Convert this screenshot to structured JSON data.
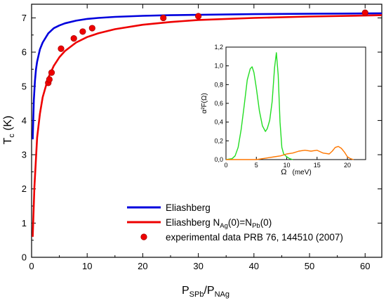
{
  "chart_data": {
    "type": "line",
    "title": "",
    "xlabel": {
      "main": "P",
      "sub1": "SPb",
      "sep": "/P",
      "sub2": "NAg"
    },
    "ylabel": {
      "main": "T",
      "sub": "c",
      "unit": " (K)"
    },
    "xlim": [
      0,
      63
    ],
    "ylim": [
      0,
      7.4
    ],
    "xticks": [
      "0",
      "10",
      "20",
      "30",
      "40",
      "50",
      "60"
    ],
    "yticks": [
      "0",
      "1",
      "2",
      "3",
      "4",
      "5",
      "6",
      "7"
    ],
    "grid": false,
    "legend_position": "bottom-right",
    "series": [
      {
        "name": "Eliashberg",
        "color": "#0000dd",
        "kind": "line",
        "x": [
          0.2,
          0.4,
          0.6,
          0.8,
          1.0,
          1.5,
          2.0,
          3.0,
          4.0,
          5.0,
          6.0,
          8.0,
          10.0,
          12.0,
          15.0,
          20.0,
          25.0,
          30.0,
          40.0,
          50.0,
          60.0,
          63.0
        ],
        "y": [
          3.45,
          4.6,
          5.16,
          5.5,
          5.72,
          6.08,
          6.28,
          6.55,
          6.7,
          6.78,
          6.84,
          6.92,
          6.97,
          7.0,
          7.03,
          7.06,
          7.08,
          7.09,
          7.11,
          7.12,
          7.13,
          7.135
        ]
      },
      {
        "name": "Eliashberg N_Ag(0)=N_Pb(0)",
        "legend_parts": {
          "a": "Eliashberg N",
          "b": "Ag",
          "c": "(0)=N",
          "d": "Pb",
          "e": "(0)"
        },
        "color": "#ee0000",
        "kind": "line",
        "x": [
          0.2,
          0.5,
          1.0,
          1.5,
          2.0,
          3.0,
          4.0,
          5.0,
          6.0,
          8.0,
          10.0,
          12.0,
          15.0,
          20.0,
          25.0,
          30.0,
          40.0,
          50.0,
          60.0,
          63.0
        ],
        "y": [
          0.6,
          2.05,
          3.5,
          4.2,
          4.68,
          5.25,
          5.6,
          5.85,
          6.03,
          6.28,
          6.44,
          6.55,
          6.67,
          6.8,
          6.88,
          6.94,
          7.0,
          7.04,
          7.07,
          7.08
        ]
      },
      {
        "name": "experimental data PRB 76, 144510 (2007)",
        "color": "#ee0000",
        "kind": "scatter",
        "x": [
          3.0,
          3.2,
          3.6,
          5.3,
          7.6,
          9.2,
          10.9,
          23.7,
          30.0,
          60.0
        ],
        "y": [
          5.1,
          5.2,
          5.4,
          6.1,
          6.4,
          6.6,
          6.7,
          7.0,
          7.05,
          7.15
        ]
      }
    ],
    "inset": {
      "type": "line",
      "xlabel": {
        "main": "Ω",
        "unit": "(meV)"
      },
      "ylabel": {
        "main": "α²F(Ω)"
      },
      "xlim": [
        0,
        23
      ],
      "ylim": [
        0,
        1.2
      ],
      "xticks": [
        "0",
        "5",
        "10",
        "15",
        "20"
      ],
      "yticks": [
        "0,0",
        "0,2",
        "0,4",
        "0,6",
        "0,8",
        "1,0",
        "1,2"
      ],
      "series": [
        {
          "color": "#22dd22",
          "x": [
            0,
            1.0,
            1.5,
            2.0,
            2.5,
            3.0,
            3.5,
            4.0,
            4.3,
            4.6,
            5.0,
            5.5,
            6.0,
            6.5,
            6.8,
            7.2,
            7.6,
            8.0,
            8.3,
            8.6,
            8.9,
            9.2,
            9.5,
            10.0,
            10.5,
            11.0
          ],
          "y": [
            0,
            0.01,
            0.04,
            0.13,
            0.32,
            0.58,
            0.85,
            0.97,
            0.99,
            0.93,
            0.76,
            0.52,
            0.36,
            0.3,
            0.33,
            0.42,
            0.62,
            0.98,
            1.14,
            0.9,
            0.4,
            0.13,
            0.06,
            0.03,
            0.01,
            0
          ]
        },
        {
          "color": "#ff7700",
          "x": [
            0,
            5.0,
            6.0,
            7.0,
            8.0,
            9.0,
            10.0,
            11.0,
            12.0,
            13.0,
            14.0,
            15.0,
            16.0,
            17.0,
            17.5,
            18.0,
            18.5,
            19.0,
            19.5,
            20.0,
            20.5,
            21.0
          ],
          "y": [
            0,
            0,
            0.01,
            0.02,
            0.03,
            0.04,
            0.06,
            0.07,
            0.09,
            0.1,
            0.09,
            0.1,
            0.07,
            0.06,
            0.09,
            0.13,
            0.14,
            0.12,
            0.08,
            0.03,
            0.01,
            0
          ]
        }
      ]
    }
  }
}
